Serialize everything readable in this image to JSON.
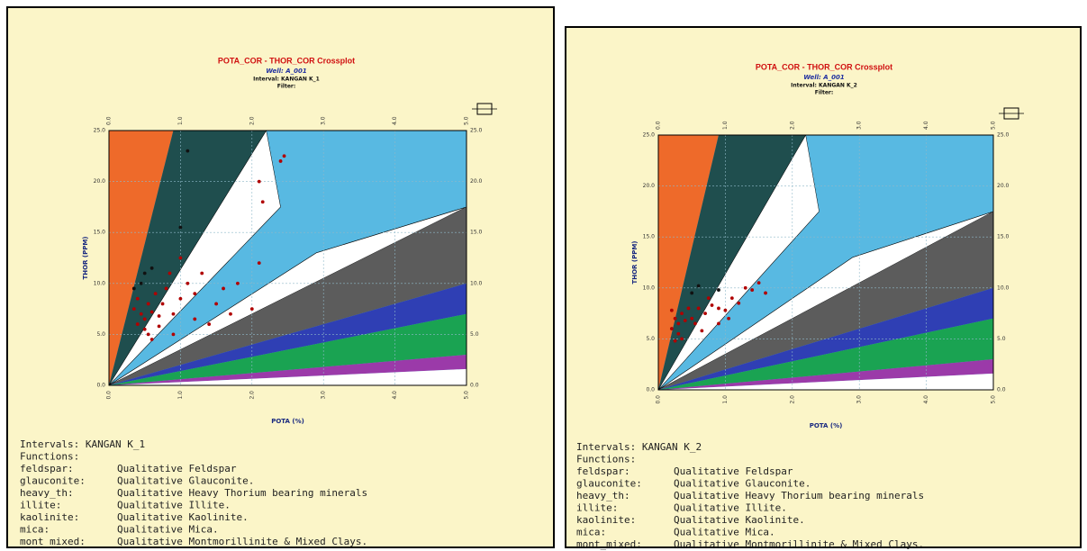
{
  "chart_data": [
    {
      "type": "scatter",
      "title": "POTA_COR - THOR_COR Crossplot",
      "subtitle": "Well: A_001",
      "interval": "Interval: KANGAN K_1",
      "filter": "Filter:",
      "xlabel": "POTA (%)",
      "ylabel": "THOR (PPM)",
      "grid": true,
      "xlim": [
        0,
        5
      ],
      "ylim": [
        0,
        25
      ],
      "xticks": [
        {
          "value": 0,
          "label": "0.0"
        },
        {
          "value": 1,
          "label": "1.0"
        },
        {
          "value": 2,
          "label": "2.0"
        },
        {
          "value": 3,
          "label": "3.0"
        },
        {
          "value": 4,
          "label": "4.0"
        },
        {
          "value": 5,
          "label": "5.0"
        }
      ],
      "yticks": [
        {
          "value": 0,
          "label": "0.0"
        },
        {
          "value": 5,
          "label": "5.0"
        },
        {
          "value": 10,
          "label": "10.0"
        },
        {
          "value": 15,
          "label": "15.0"
        },
        {
          "value": 20,
          "label": "20.0"
        },
        {
          "value": 25,
          "label": "25.0"
        }
      ],
      "series": [
        {
          "color": "#b00000",
          "x": [
            0.4,
            0.45,
            0.5,
            0.55,
            0.6,
            0.5,
            0.65,
            0.7,
            0.4,
            0.55,
            0.6,
            0.75,
            0.35,
            0.7,
            0.8,
            0.9,
            1.0,
            1.1,
            1.2,
            0.9,
            1.3,
            1.5,
            1.4,
            1.7,
            2.0,
            1.8,
            2.1,
            1.0,
            2.1,
            2.15,
            2.4,
            2.45,
            1.2,
            1.6,
            0.85
          ],
          "values": [
            6,
            7,
            6.5,
            8,
            7.2,
            5.5,
            9,
            6.8,
            8.5,
            5,
            4.5,
            8,
            7.5,
            5.8,
            9.5,
            7,
            8.5,
            10,
            9,
            5,
            11,
            8,
            6,
            7,
            7.5,
            10,
            12,
            12.5,
            20,
            18,
            22,
            22.5,
            6.5,
            9.5,
            11
          ]
        },
        {
          "color": "#111111",
          "x": [
            0.5,
            0.45,
            0.6,
            1.1,
            1.0,
            0.35
          ],
          "values": [
            11,
            10,
            11.5,
            23,
            15.5,
            9.5
          ]
        }
      ],
      "intervals": "Intervals:  KANGAN K_1",
      "functions_heading": "Functions:",
      "functions": [
        {
          "name": "feldspar:",
          "color": "#8a3aa0",
          "description": "Qualitative Feldspar"
        },
        {
          "name": "glauconite:",
          "color": "#2f9e2f",
          "description": "Qualitative Glauconite."
        },
        {
          "name": "heavy_th:",
          "color": "#c9c640",
          "description": "Qualitative Heavy Thorium bearing minerals"
        },
        {
          "name": "illite:",
          "color": "#d9cf7a",
          "description": "Qualitative Illite."
        },
        {
          "name": "kaolinite:",
          "color": "#4a62b8",
          "description": "Qualitative Kaolinite."
        },
        {
          "name": "mica:",
          "color": "#2a2a80",
          "description": "Qualitative Mica."
        },
        {
          "name": "mont_mixed:",
          "color": "#eee6b8",
          "description": "Qualitative Montmorillinite & Mixed Clays."
        }
      ]
    },
    {
      "type": "scatter",
      "title": "POTA_COR - THOR_COR Crossplot",
      "subtitle": "Well: A_001",
      "interval": "Interval: KANGAN K_2",
      "filter": "Filter:",
      "xlabel": "POTA (%)",
      "ylabel": "THOR (PPM)",
      "grid": true,
      "xlim": [
        0,
        5
      ],
      "ylim": [
        0,
        25
      ],
      "xticks": [
        {
          "value": 0,
          "label": "0.0"
        },
        {
          "value": 1,
          "label": "1.0"
        },
        {
          "value": 2,
          "label": "2.0"
        },
        {
          "value": 3,
          "label": "3.0"
        },
        {
          "value": 4,
          "label": "4.0"
        },
        {
          "value": 5,
          "label": "5.0"
        }
      ],
      "yticks": [
        {
          "value": 0,
          "label": "0.0"
        },
        {
          "value": 5,
          "label": "5.0"
        },
        {
          "value": 10,
          "label": "10.0"
        },
        {
          "value": 15,
          "label": "15.0"
        },
        {
          "value": 20,
          "label": "20.0"
        },
        {
          "value": 25,
          "label": "25.0"
        }
      ],
      "series": [
        {
          "color": "#b00000",
          "x": [
            0.2,
            0.25,
            0.3,
            0.35,
            0.4,
            0.3,
            0.45,
            0.5,
            0.2,
            0.35,
            0.55,
            0.6,
            0.7,
            0.8,
            0.9,
            1.0,
            1.1,
            1.2,
            1.3,
            1.4,
            1.5,
            1.6,
            0.9,
            0.65,
            0.25,
            1.05,
            0.75
          ],
          "values": [
            6,
            7,
            6.5,
            7.5,
            6.8,
            5.5,
            8,
            7,
            7.8,
            5,
            6.5,
            8,
            7.5,
            8.3,
            8,
            7.8,
            9,
            8.5,
            10,
            9.8,
            10.5,
            9.5,
            6.5,
            5.8,
            4.8,
            7,
            9
          ]
        },
        {
          "color": "#111111",
          "x": [
            0.5,
            0.6,
            0.9
          ],
          "values": [
            9.5,
            10.2,
            9.8
          ]
        }
      ],
      "intervals": "Intervals:  KANGAN K_2",
      "functions_heading": "Functions:",
      "functions": [
        {
          "name": "feldspar:",
          "color": "#8a3aa0",
          "description": "Qualitative Feldspar"
        },
        {
          "name": "glauconite:",
          "color": "#2f9e2f",
          "description": "Qualitative Glauconite."
        },
        {
          "name": "heavy_th:",
          "color": "#c9c640",
          "description": "Qualitative Heavy Thorium bearing minerals"
        },
        {
          "name": "illite:",
          "color": "#d9cf7a",
          "description": "Qualitative Illite."
        },
        {
          "name": "kaolinite:",
          "color": "#4a62b8",
          "description": "Qualitative Kaolinite."
        },
        {
          "name": "mica:",
          "color": "#2a2a80",
          "description": "Qualitative Mica."
        },
        {
          "name": "mont_mixed:",
          "color": "#eee6b8",
          "description": "Qualitative Montmorillinite & Mixed Clays."
        }
      ]
    }
  ]
}
